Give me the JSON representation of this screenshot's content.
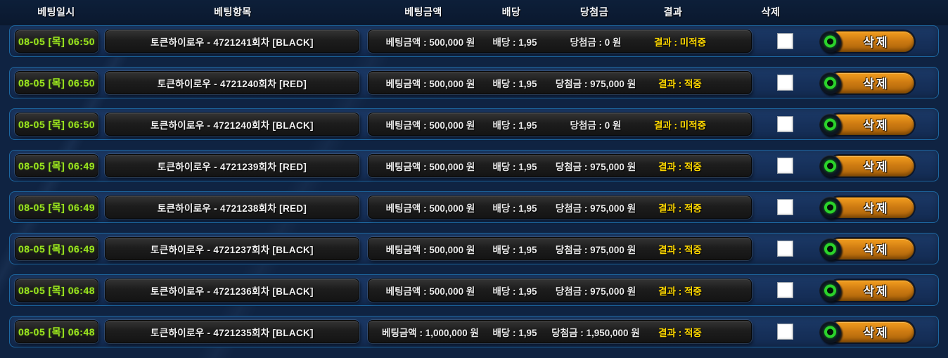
{
  "header": {
    "columns": [
      {
        "label": "베팅일시"
      },
      {
        "label": "베팅항목"
      },
      {
        "label": "베팅금액"
      },
      {
        "label": "배당"
      },
      {
        "label": "당첨금"
      },
      {
        "label": "결과"
      },
      {
        "label": "삭제"
      }
    ]
  },
  "controls": {
    "delete_label": "삭제"
  },
  "rows": [
    {
      "datetime": "08-05 [목] 06:50",
      "item": "토큰하이로우 - 4721241회차 [BLACK]",
      "amount": "베팅금액 : 500,000 원",
      "odds": "배당 : 1,95",
      "prize": "당첨금 : 0 원",
      "result": "결과 : 미적중"
    },
    {
      "datetime": "08-05 [목] 06:50",
      "item": "토큰하이로우 - 4721240회차 [RED]",
      "amount": "베팅금액 : 500,000 원",
      "odds": "배당 : 1,95",
      "prize": "당첨금 : 975,000 원",
      "result": "결과 : 적중"
    },
    {
      "datetime": "08-05 [목] 06:50",
      "item": "토큰하이로우 - 4721240회차 [BLACK]",
      "amount": "베팅금액 : 500,000 원",
      "odds": "배당 : 1,95",
      "prize": "당첨금 : 0 원",
      "result": "결과 : 미적중"
    },
    {
      "datetime": "08-05 [목] 06:49",
      "item": "토큰하이로우 - 4721239회차 [RED]",
      "amount": "베팅금액 : 500,000 원",
      "odds": "배당 : 1,95",
      "prize": "당첨금 : 975,000 원",
      "result": "결과 : 적중"
    },
    {
      "datetime": "08-05 [목] 06:49",
      "item": "토큰하이로우 - 4721238회차 [RED]",
      "amount": "베팅금액 : 500,000 원",
      "odds": "배당 : 1,95",
      "prize": "당첨금 : 975,000 원",
      "result": "결과 : 적중"
    },
    {
      "datetime": "08-05 [목] 06:49",
      "item": "토큰하이로우 - 4721237회차 [BLACK]",
      "amount": "베팅금액 : 500,000 원",
      "odds": "배당 : 1,95",
      "prize": "당첨금 : 975,000 원",
      "result": "결과 : 적중"
    },
    {
      "datetime": "08-05 [목] 06:48",
      "item": "토큰하이로우 - 4721236회차 [BLACK]",
      "amount": "베팅금액 : 500,000 원",
      "odds": "배당 : 1,95",
      "prize": "당첨금 : 975,000 원",
      "result": "결과 : 적중"
    },
    {
      "datetime": "08-05 [목] 06:48",
      "item": "토큰하이로우 - 4721235회차 [BLACK]",
      "amount": "베팅금액 : 1,000,000 원",
      "odds": "배당 : 1,95",
      "prize": "당첨금 : 1,950,000 원",
      "result": "결과 : 적중"
    }
  ],
  "colors": {
    "page_background": "#0f2342",
    "header_background": "#0a182e",
    "row_border_blue": "#1d67a0",
    "row_background": "#16305a",
    "panel_dark": "#1d1d1d",
    "datetime_green": "#9be41e",
    "result_yellow": "#ffd800",
    "button_orange": "#cf7c12",
    "knob_ring_green": "#2bd32b",
    "text_white": "#f2f2f2"
  }
}
